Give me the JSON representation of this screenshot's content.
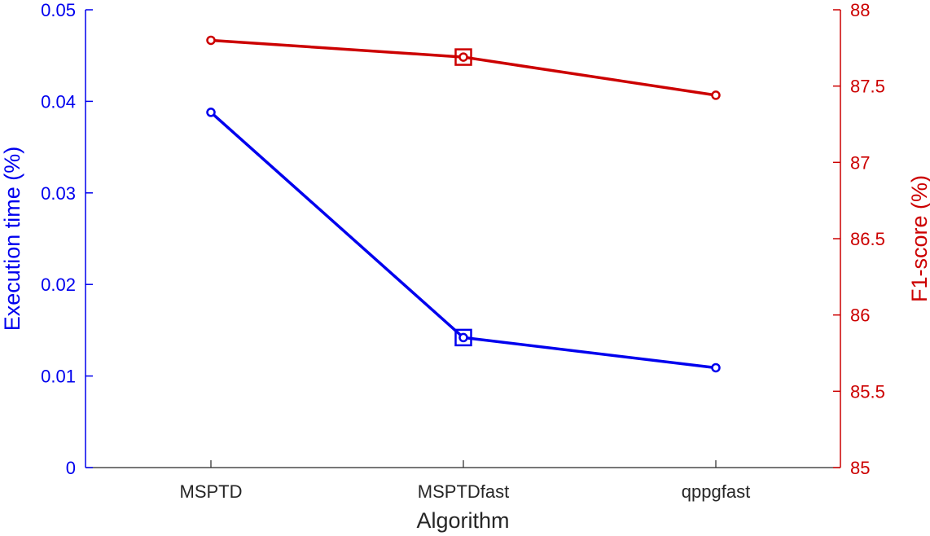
{
  "chart_data": {
    "type": "line",
    "categories": [
      "MSPTD",
      "MSPTDfast",
      "qppgfast"
    ],
    "xlabel": "Algorithm",
    "y_left": {
      "label": "Execution time (%)",
      "ylim": [
        0,
        0.05
      ],
      "ticks": [
        0,
        0.01,
        0.02,
        0.03,
        0.04,
        0.05
      ],
      "tick_labels": [
        "0",
        "0.01",
        "0.02",
        "0.03",
        "0.04",
        "0.05"
      ],
      "color": "#0000ee"
    },
    "y_right": {
      "label": "F1-score (%)",
      "ylim": [
        85,
        88
      ],
      "ticks": [
        85,
        85.5,
        86,
        86.5,
        87,
        87.5,
        88
      ],
      "tick_labels": [
        "85",
        "85.5",
        "86",
        "86.5",
        "87",
        "87.5",
        "88"
      ],
      "color": "#cc0000"
    },
    "series": [
      {
        "axis": "left",
        "color": "#0000ee",
        "values": [
          0.0388,
          0.0142,
          0.0109
        ],
        "highlight_index": 1
      },
      {
        "axis": "right",
        "color": "#cc0000",
        "values": [
          87.8,
          87.69,
          87.44
        ],
        "highlight_index": 1
      }
    ],
    "grid": false,
    "legend": "none"
  }
}
